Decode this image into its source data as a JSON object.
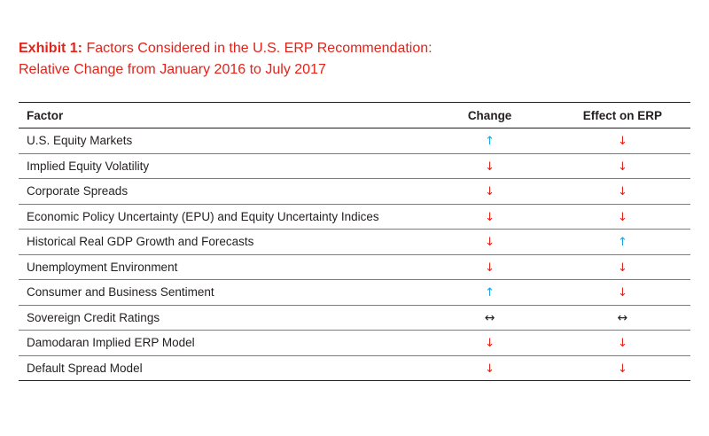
{
  "title": {
    "prefix": "Exhibit 1:",
    "line1": "Factors Considered in the U.S. ERP Recommendation:",
    "line2": "Relative Change from January 2016 to July 2017"
  },
  "table": {
    "headers": [
      "Factor",
      "Change",
      "Effect on ERP"
    ],
    "rows": [
      {
        "factor": "U.S. Equity Markets",
        "change": "up",
        "effect": "down"
      },
      {
        "factor": "Implied Equity Volatility",
        "change": "down",
        "effect": "down"
      },
      {
        "factor": "Corporate Spreads",
        "change": "down",
        "effect": "down"
      },
      {
        "factor": "Economic Policy Uncertainty (EPU) and Equity Uncertainty Indices",
        "change": "down",
        "effect": "down"
      },
      {
        "factor": "Historical Real GDP Growth and Forecasts",
        "change": "down",
        "effect": "up"
      },
      {
        "factor": "Unemployment Environment",
        "change": "down",
        "effect": "down"
      },
      {
        "factor": "Consumer and Business Sentiment",
        "change": "up",
        "effect": "down"
      },
      {
        "factor": "Sovereign Credit Ratings",
        "change": "flat",
        "effect": "flat"
      },
      {
        "factor": "Damodaran Implied ERP Model",
        "change": "down",
        "effect": "down"
      },
      {
        "factor": "Default Spread Model",
        "change": "down",
        "effect": "down"
      }
    ]
  },
  "arrow_glyphs": {
    "up": "↑",
    "down": "↓",
    "flat": "↔"
  },
  "colors": {
    "title_red": "#e2231a",
    "arrow_down": "#e2231a",
    "arrow_up": "#1aa3dc",
    "arrow_flat": "#231f20",
    "text": "#231f20"
  }
}
